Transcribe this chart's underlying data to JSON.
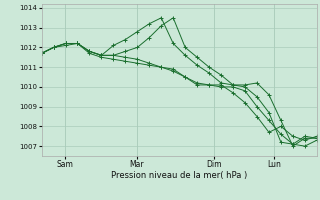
{
  "bg_color": "#cce8d8",
  "grid_color": "#aaccbb",
  "line_color": "#1a6e2e",
  "marker_color": "#1a6e2e",
  "xlabel": "Pression niveau de la mer( hPa )",
  "ylim": [
    1006.5,
    1014.2
  ],
  "yticks": [
    1007,
    1008,
    1009,
    1010,
    1011,
    1012,
    1013,
    1014
  ],
  "day_labels": [
    "Sam",
    "Mar",
    "Dim",
    "Lun"
  ],
  "day_positions": [
    0.085,
    0.345,
    0.625,
    0.845
  ],
  "series": [
    [
      1011.7,
      1012.0,
      1012.2,
      1012.2,
      1011.7,
      1011.5,
      1011.4,
      1011.3,
      1011.2,
      1011.1,
      1011.0,
      1010.9,
      1010.5,
      1010.2,
      1010.1,
      1010.1,
      1009.7,
      1009.2,
      1008.5,
      1007.7,
      1008.0,
      1007.5,
      1007.3,
      1007.5
    ],
    [
      1011.7,
      1012.0,
      1012.1,
      1012.2,
      1011.8,
      1011.6,
      1011.6,
      1011.8,
      1012.0,
      1012.5,
      1013.1,
      1013.5,
      1012.0,
      1011.5,
      1011.0,
      1010.6,
      1010.1,
      1010.1,
      1010.2,
      1009.6,
      1008.3,
      1007.0,
      1007.4,
      1007.4
    ],
    [
      1011.7,
      1012.0,
      1012.2,
      1012.2,
      1011.8,
      1011.6,
      1012.1,
      1012.4,
      1012.8,
      1013.2,
      1013.5,
      1012.2,
      1011.6,
      1011.1,
      1010.7,
      1010.2,
      1010.1,
      1010.0,
      1009.5,
      1008.7,
      1007.2,
      1007.1,
      1007.5,
      1007.4
    ],
    [
      1011.7,
      1012.0,
      1012.2,
      1012.2,
      1011.8,
      1011.6,
      1011.6,
      1011.5,
      1011.4,
      1011.2,
      1011.0,
      1010.8,
      1010.5,
      1010.1,
      1010.1,
      1010.0,
      1010.0,
      1009.8,
      1009.0,
      1008.3,
      1007.6,
      1007.1,
      1007.0,
      1007.3
    ]
  ]
}
